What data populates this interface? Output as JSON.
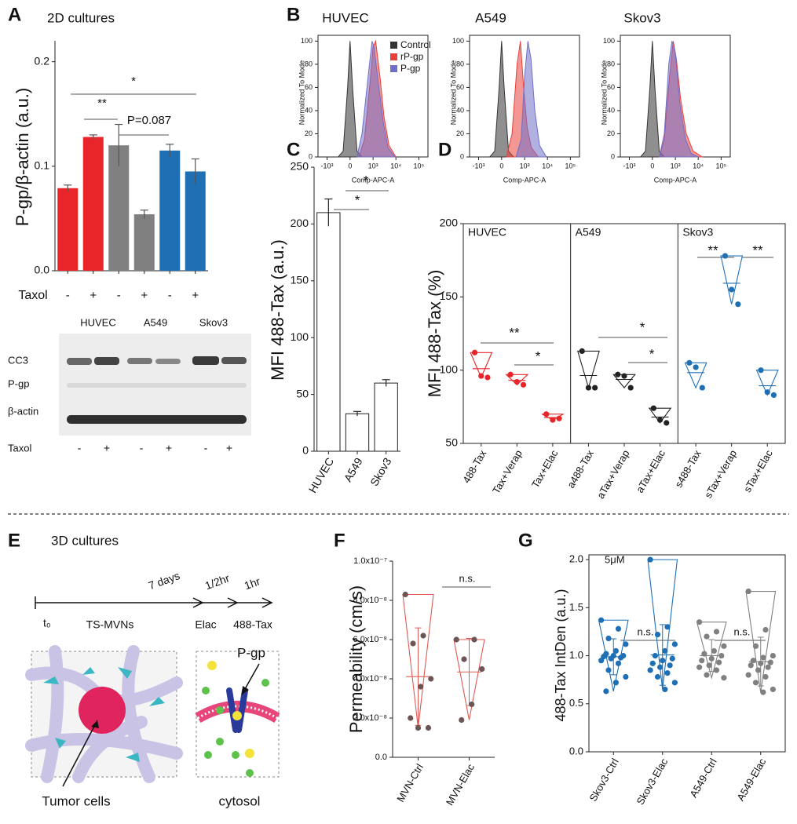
{
  "panel_labels": [
    "A",
    "B",
    "C",
    "D",
    "E",
    "F",
    "G"
  ],
  "blot": {
    "lane_groups": [
      "HUVEC",
      "A549",
      "Skov3"
    ],
    "rows": [
      "CC3",
      "P-gp",
      "β-actin"
    ],
    "treatment": "Taxol",
    "treatment_levels": [
      "-",
      "+",
      "-",
      "+",
      "-",
      "+"
    ]
  },
  "diagram": {
    "title": "3D cultures",
    "start": "t₀",
    "durations": [
      "7 days",
      "1/2hr",
      "1hr"
    ],
    "steps": [
      "TS-MVNs",
      "Elac",
      "488-Tax"
    ],
    "callouts": [
      "P-gp",
      "Tumor cells",
      "cytosol"
    ]
  },
  "chart_data": [
    {
      "type": "bar",
      "title": "2D cultures",
      "ylabel": "P-gp/β-actin (a.u.)",
      "xlabel": "Taxol",
      "categories": [
        "-",
        "+",
        "-",
        "+",
        "-",
        "+"
      ],
      "values": [
        0.079,
        0.128,
        0.12,
        0.054,
        0.115,
        0.095
      ],
      "errors": [
        0.003,
        0.002,
        0.02,
        0.004,
        0.006,
        0.012
      ],
      "colors": [
        "#e8262a",
        "#e8262a",
        "#808080",
        "#808080",
        "#1f6fb5",
        "#1f6fb5"
      ],
      "ylim": [
        0,
        0.22
      ],
      "yticks": [
        {
          "value": 0,
          "label": "0.0"
        },
        0.1,
        0.2
      ],
      "annotations": [
        "**",
        "P=0.087",
        "*"
      ]
    },
    {
      "type": "density",
      "title": "HUVEC",
      "ylabel": "Normalized To Mode",
      "xlabel": "Comp-APC-A",
      "xscale": "asinh",
      "cofactor": 200,
      "xlim": [
        -2500,
        250000
      ],
      "ylim": [
        0,
        105
      ],
      "xticks": [
        {
          "value": -1000,
          "label": "-10³"
        },
        0,
        {
          "value": 1000,
          "label": "10³"
        },
        {
          "value": 10000,
          "label": "10⁴"
        },
        {
          "value": 100000,
          "label": "10⁵"
        }
      ],
      "yticks": [
        0,
        20,
        40,
        60,
        80,
        100
      ],
      "legend": "upper right",
      "series": [
        {
          "name": "Control",
          "color": "#333333",
          "x": [
            -300,
            -150,
            -50,
            0,
            50,
            150,
            300
          ],
          "values": [
            0,
            5,
            60,
            100,
            60,
            5,
            0
          ]
        },
        {
          "name": "rP-gp",
          "color": "#e8413c",
          "x": [
            200,
            400,
            700,
            1000,
            1300,
            2000,
            3000,
            5000,
            10000
          ],
          "values": [
            0,
            15,
            60,
            95,
            100,
            70,
            35,
            10,
            0
          ]
        },
        {
          "name": "P-gp",
          "color": "#6f6fc9",
          "x": [
            150,
            300,
            600,
            900,
            1100,
            1800,
            2800,
            4500,
            9000
          ],
          "values": [
            0,
            20,
            70,
            100,
            95,
            60,
            30,
            8,
            0
          ]
        }
      ]
    },
    {
      "type": "density",
      "title": "A549",
      "ylabel": "Normalized To Mode",
      "xlabel": "Comp-APC-A",
      "xscale": "asinh",
      "cofactor": 200,
      "xlim": [
        -2500,
        250000
      ],
      "ylim": [
        0,
        105
      ],
      "xticks": [
        {
          "value": -1000,
          "label": "-10³"
        },
        0,
        {
          "value": 1000,
          "label": "10³"
        },
        {
          "value": 10000,
          "label": "10⁴"
        },
        {
          "value": 100000,
          "label": "10⁵"
        }
      ],
      "yticks": [
        0,
        20,
        40,
        60,
        80,
        100
      ],
      "series": [
        {
          "color": "#333333",
          "x": [
            -300,
            -150,
            -50,
            0,
            50,
            150,
            300
          ],
          "values": [
            0,
            5,
            60,
            100,
            60,
            5,
            0
          ]
        },
        {
          "color": "#e8413c",
          "x": [
            100,
            250,
            450,
            650,
            900,
            1300,
            2000,
            4000
          ],
          "values": [
            0,
            20,
            80,
            100,
            60,
            25,
            8,
            0
          ]
        },
        {
          "color": "#6f6fc9",
          "x": [
            400,
            700,
            1000,
            1400,
            1900,
            2800,
            4500,
            9000
          ],
          "values": [
            0,
            15,
            70,
            100,
            85,
            40,
            10,
            0
          ]
        }
      ]
    },
    {
      "type": "density",
      "title": "Skov3",
      "ylabel": "Normalized To Mode",
      "xlabel": "Comp-APC-A",
      "xscale": "asinh",
      "cofactor": 200,
      "xlim": [
        -2500,
        250000
      ],
      "ylim": [
        0,
        105
      ],
      "xticks": [
        {
          "value": -1000,
          "label": "-10³"
        },
        0,
        {
          "value": 1000,
          "label": "10³"
        },
        {
          "value": 10000,
          "label": "10⁴"
        },
        {
          "value": 100000,
          "label": "10⁵"
        }
      ],
      "yticks": [
        0,
        20,
        40,
        60,
        80,
        100
      ],
      "series": [
        {
          "color": "#333333",
          "x": [
            -300,
            -150,
            -50,
            0,
            50,
            150,
            300
          ],
          "values": [
            0,
            5,
            60,
            100,
            60,
            5,
            0
          ]
        },
        {
          "color": "#e8413c",
          "x": [
            150,
            300,
            550,
            800,
            1100,
            1700,
            3000,
            6000,
            15000
          ],
          "values": [
            0,
            15,
            70,
            100,
            85,
            50,
            20,
            5,
            0
          ]
        },
        {
          "color": "#6f6fc9",
          "x": [
            150,
            300,
            500,
            700,
            1000,
            1600,
            2800,
            5000,
            10000
          ],
          "values": [
            0,
            20,
            80,
            100,
            90,
            45,
            15,
            3,
            0
          ]
        }
      ]
    },
    {
      "type": "bar",
      "ylabel": "MFI 488-Tax (a.u.)",
      "categories": [
        "HUVEC",
        "A549",
        "Skov3"
      ],
      "values": [
        210,
        33,
        60
      ],
      "errors": [
        12,
        2,
        3
      ],
      "color": "#ffffff",
      "edgecolor": "#222222",
      "ylim": [
        0,
        250
      ],
      "yticks": [
        0,
        50,
        100,
        150,
        200,
        250
      ],
      "annotations": [
        "*",
        "*"
      ]
    },
    {
      "type": "dot",
      "ylabel": "MFI 488-Tax (%)",
      "ylim": [
        50,
        200
      ],
      "yticks": [
        50,
        100,
        150,
        200
      ],
      "groups": [
        {
          "name": "HUVEC",
          "color": "#e8262a",
          "categories": [
            "488-Tax",
            "Tax+Verap",
            "Tax+Elac"
          ],
          "values": [
            [
              112,
              96,
              95
            ],
            [
              97,
              92,
              90
            ],
            [
              70,
              66,
              67
            ]
          ]
        },
        {
          "name": "A549",
          "color": "#222222",
          "categories": [
            "a488-Tax",
            "aTax+Verap",
            "aTax+Elac"
          ],
          "values": [
            [
              113,
              88,
              88
            ],
            [
              97,
              96,
              88
            ],
            [
              74,
              66,
              64
            ]
          ]
        },
        {
          "name": "Skov3",
          "color": "#1f6fb5",
          "categories": [
            "s488-Tax",
            "sTax+Verap",
            "sTax+Elac"
          ],
          "values": [
            [
              105,
              102,
              88
            ],
            [
              178,
              155,
              145
            ],
            [
              100,
              85,
              83
            ]
          ]
        }
      ],
      "annotations": [
        "**",
        "*",
        "*",
        "*",
        "**",
        "**"
      ]
    },
    {
      "type": "dot",
      "ylabel": "Permeability (cm/s)",
      "ylim": [
        0,
        1e-07
      ],
      "yticks": [
        {
          "value": 0,
          "label": "0.0"
        },
        {
          "value": 2e-08,
          "label": "2.0x10⁻⁸"
        },
        {
          "value": 4e-08,
          "label": "4.0x10⁻⁸"
        },
        {
          "value": 6e-08,
          "label": "6.0x10⁻⁸"
        },
        {
          "value": 8e-08,
          "label": "8.0x10⁻⁸"
        },
        {
          "value": 1e-07,
          "label": "1.0x10⁻⁷"
        }
      ],
      "groups": [
        {
          "color": "#6b5555",
          "shape_color": "#e05a55",
          "categories": [
            "MVN-Ctrl",
            "MVN-Elac"
          ],
          "values": [
            [
              8.3e-08,
              6.2e-08,
              5.8e-08,
              4e-08,
              3.6e-08,
              2e-08,
              1.5e-08,
              1.5e-08
            ],
            [
              6e-08,
              6e-08,
              5e-08,
              4.5e-08,
              2.7e-08,
              1.9e-08
            ]
          ]
        }
      ],
      "annotations": [
        "n.s."
      ]
    },
    {
      "type": "dot",
      "ylabel": "488-Tax IntDen (a.u.)",
      "ylim": [
        0,
        2.05
      ],
      "yticks": [
        {
          "value": 0,
          "label": "0.0"
        },
        0.5,
        {
          "value": 1,
          "label": "1.0"
        },
        1.5,
        {
          "value": 2,
          "label": "2.0"
        }
      ],
      "groups": [
        {
          "color": "#1f6fb5",
          "shape_color": "#1f6fb5",
          "categories": [
            "Skov3-Ctrl",
            "Skov3-Elac"
          ],
          "values": [
            [
              1.37,
              1.28,
              1.18,
              1.12,
              1.05,
              1.02,
              1.0,
              1.0,
              0.99,
              0.98,
              0.97,
              0.95,
              0.92,
              0.85,
              0.78,
              0.72,
              0.63
            ],
            [
              2.0,
              1.3,
              1.22,
              1.12,
              1.05,
              1.0,
              0.97,
              0.95,
              0.92,
              0.9,
              0.88,
              0.85,
              0.82,
              0.78,
              0.72,
              0.65
            ]
          ]
        },
        {
          "color": "#808080",
          "shape_color": "#808080",
          "categories": [
            "A549-Ctrl",
            "A549-Elac"
          ],
          "values": [
            [
              1.35,
              1.25,
              1.2,
              1.1,
              1.05,
              1.02,
              1.0,
              0.97,
              0.95,
              0.93,
              0.9,
              0.88,
              0.85,
              0.8,
              0.77
            ],
            [
              1.67,
              1.27,
              1.1,
              1.0,
              0.98,
              0.95,
              0.93,
              0.92,
              0.9,
              0.88,
              0.85,
              0.8,
              0.78,
              0.72,
              0.65,
              0.62
            ]
          ]
        }
      ],
      "annotations": [
        "5μM",
        "n.s.",
        "n.s."
      ]
    }
  ]
}
